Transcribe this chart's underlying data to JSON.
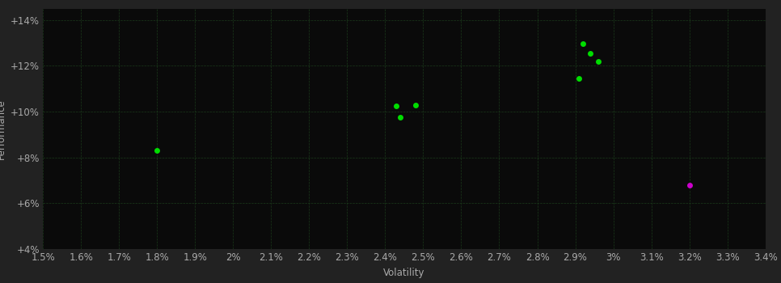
{
  "background_color": "#222222",
  "plot_bg_color": "#0a0a0a",
  "grid_color": "#1a3a1a",
  "tick_color": "#aaaaaa",
  "label_color": "#aaaaaa",
  "xlabel": "Volatility",
  "ylabel": "Performance",
  "xlim": [
    0.015,
    0.034
  ],
  "ylim": [
    0.04,
    0.145
  ],
  "xticks": [
    0.015,
    0.016,
    0.017,
    0.018,
    0.019,
    0.02,
    0.021,
    0.022,
    0.023,
    0.024,
    0.025,
    0.026,
    0.027,
    0.028,
    0.029,
    0.03,
    0.031,
    0.032,
    0.033,
    0.034
  ],
  "yticks": [
    0.04,
    0.06,
    0.08,
    0.1,
    0.12,
    0.14
  ],
  "ytick_labels": [
    "+4%",
    "+6%",
    "+8%",
    "+10%",
    "+12%",
    "+14%"
  ],
  "xtick_labels": [
    "1.5%",
    "1.6%",
    "1.7%",
    "1.8%",
    "1.9%",
    "2%",
    "2.1%",
    "2.2%",
    "2.3%",
    "2.4%",
    "2.5%",
    "2.6%",
    "2.7%",
    "2.8%",
    "2.9%",
    "3%",
    "3.1%",
    "3.2%",
    "3.3%",
    "3.4%"
  ],
  "green_points": [
    [
      0.018,
      0.083
    ],
    [
      0.0243,
      0.1025
    ],
    [
      0.0248,
      0.103
    ],
    [
      0.0244,
      0.0975
    ],
    [
      0.0292,
      0.1295
    ],
    [
      0.0294,
      0.1255
    ],
    [
      0.0296,
      0.122
    ],
    [
      0.0291,
      0.1145
    ]
  ],
  "magenta_points": [
    [
      0.032,
      0.068
    ]
  ],
  "green_color": "#00dd00",
  "magenta_color": "#cc00cc",
  "marker_size": 5,
  "font_size": 8.5
}
